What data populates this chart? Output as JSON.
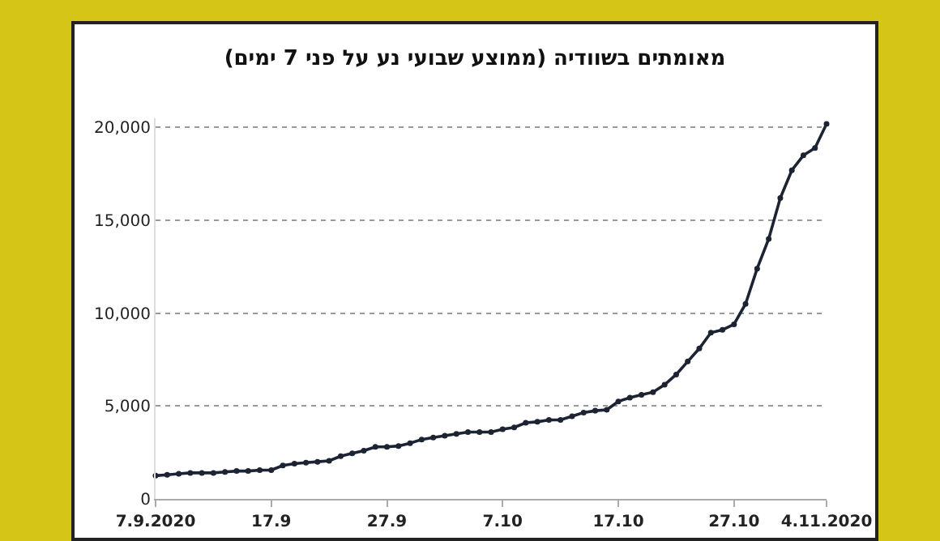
{
  "chart_data": {
    "type": "line",
    "title": "מאומתים בשוודיה (ממוצע שבועי נע על פני 7 ימים)",
    "x": [
      "2020-09-07",
      "2020-09-08",
      "2020-09-09",
      "2020-09-10",
      "2020-09-11",
      "2020-09-12",
      "2020-09-13",
      "2020-09-14",
      "2020-09-15",
      "2020-09-16",
      "2020-09-17",
      "2020-09-18",
      "2020-09-19",
      "2020-09-20",
      "2020-09-21",
      "2020-09-22",
      "2020-09-23",
      "2020-09-24",
      "2020-09-25",
      "2020-09-26",
      "2020-09-27",
      "2020-09-28",
      "2020-09-29",
      "2020-09-30",
      "2020-10-01",
      "2020-10-02",
      "2020-10-03",
      "2020-10-04",
      "2020-10-05",
      "2020-10-06",
      "2020-10-07",
      "2020-10-08",
      "2020-10-09",
      "2020-10-10",
      "2020-10-11",
      "2020-10-12",
      "2020-10-13",
      "2020-10-14",
      "2020-10-15",
      "2020-10-16",
      "2020-10-17",
      "2020-10-18",
      "2020-10-19",
      "2020-10-20",
      "2020-10-21",
      "2020-10-22",
      "2020-10-23",
      "2020-10-24",
      "2020-10-25",
      "2020-10-26",
      "2020-10-27",
      "2020-10-28",
      "2020-10-29",
      "2020-10-30",
      "2020-10-31",
      "2020-11-01",
      "2020-11-02",
      "2020-11-03",
      "2020-11-04"
    ],
    "series": [
      {
        "color": "#1c2333",
        "values": [
          1250,
          1300,
          1350,
          1400,
          1400,
          1400,
          1450,
          1500,
          1500,
          1550,
          1550,
          1800,
          1900,
          1950,
          2000,
          2050,
          2300,
          2450,
          2600,
          2800,
          2800,
          2850,
          3000,
          3200,
          3300,
          3400,
          3500,
          3600,
          3600,
          3600,
          3750,
          3850,
          4100,
          4150,
          4250,
          4250,
          4450,
          4650,
          4750,
          4800,
          5250,
          5450,
          5600,
          5750,
          6150,
          6700,
          7400,
          8100,
          8950,
          9100,
          9400,
          10500,
          12400,
          14000,
          16200,
          17700,
          18500,
          18900,
          20200
        ]
      }
    ],
    "xlim": [
      "2020-09-07",
      "2020-11-04"
    ],
    "xticks": [
      {
        "value": "2020-09-07",
        "label": "7.9.2020"
      },
      {
        "value": "2020-09-17",
        "label": "17.9"
      },
      {
        "value": "2020-09-27",
        "label": "27.9"
      },
      {
        "value": "2020-10-07",
        "label": "7.10"
      },
      {
        "value": "2020-10-17",
        "label": "17.10"
      },
      {
        "value": "2020-10-27",
        "label": "27.10"
      },
      {
        "value": "2020-11-04",
        "label": "4.11.2020"
      }
    ],
    "ylim": [
      0,
      20500
    ],
    "yticks": [
      0,
      {
        "value": 5000,
        "label": "5,000"
      },
      {
        "value": 10000,
        "label": "10,000"
      },
      {
        "value": 15000,
        "label": "15,000"
      },
      {
        "value": 20000,
        "label": "20,000"
      }
    ],
    "grid": "y",
    "marker": "circle",
    "line_style": "solid",
    "legend": false
  }
}
